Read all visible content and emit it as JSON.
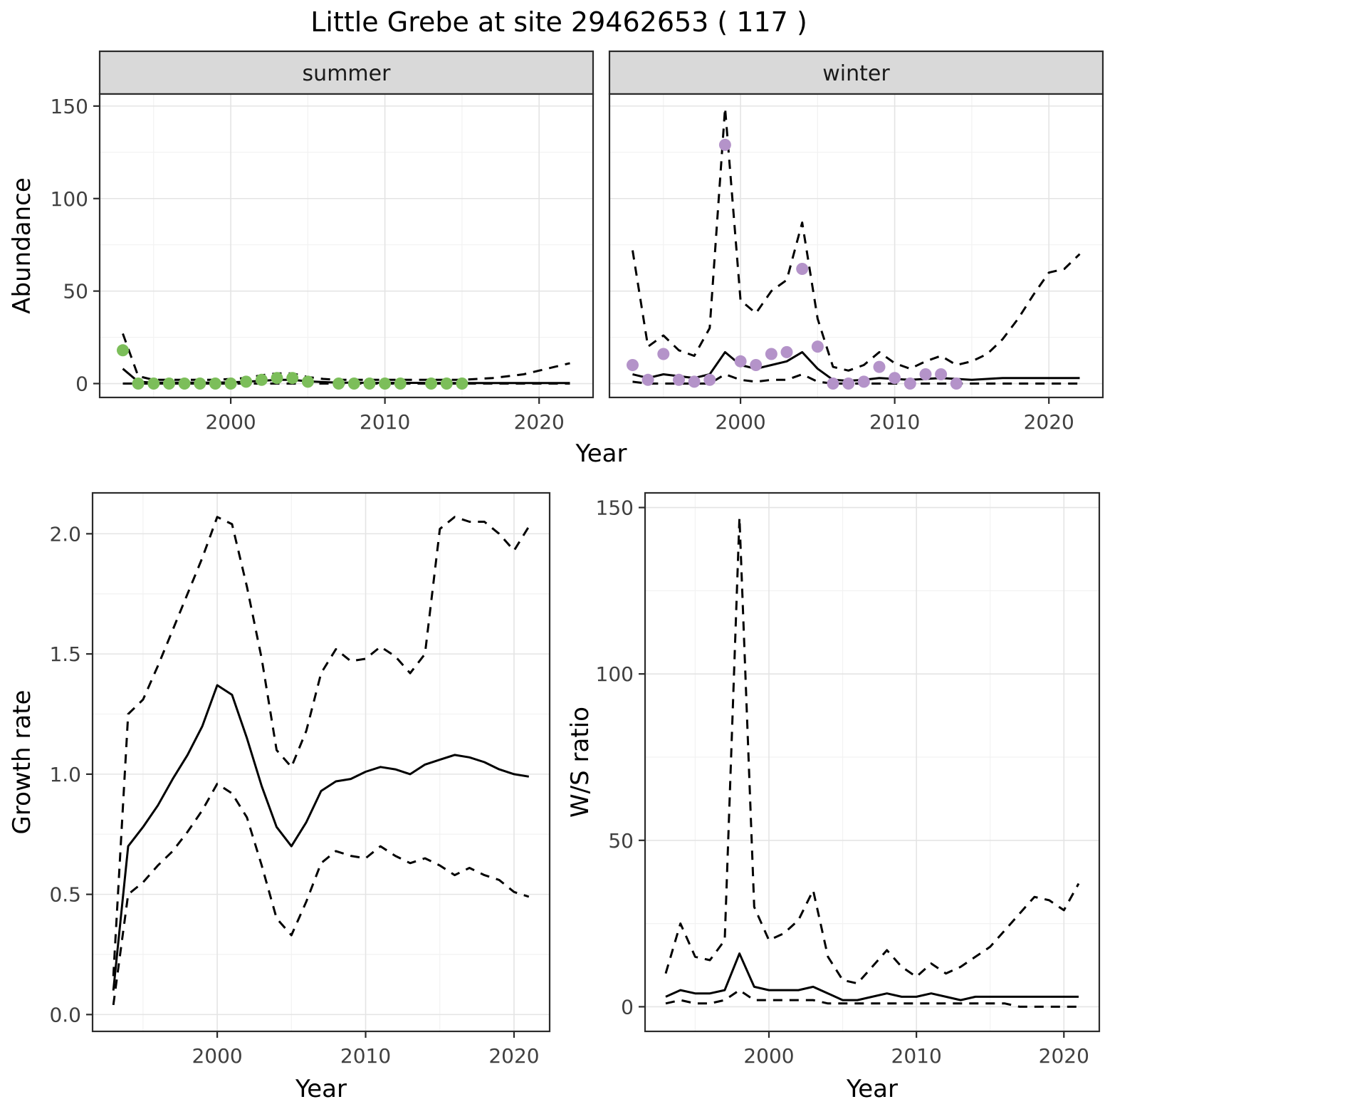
{
  "title": "Little Grebe at site 29462653 ( 117 )",
  "colors": {
    "line": "#000000",
    "strip_bg": "#d9d9d9",
    "panel_border": "#2b2b2b",
    "grid_major": "#e4e4e4",
    "grid_minor": "#f2f2f2",
    "tick_text": "#404040"
  },
  "chart_data": [
    {
      "id": "abundance-by-season",
      "type": "line",
      "title": "",
      "xlabel": "Year",
      "ylabel": "Abundance",
      "facets": [
        "summer",
        "winter"
      ],
      "legend": "none",
      "grid": true,
      "xlim": [
        1991.5,
        2023.5
      ],
      "ylim": [
        -7.5,
        156.5
      ],
      "x_ticks": [
        2000,
        2010,
        2020
      ],
      "x_tick_labels": [
        "2000",
        "2010",
        "2020"
      ],
      "x_minor": [
        1995,
        2005,
        2015
      ],
      "y_ticks": [
        0,
        50,
        100,
        150
      ],
      "y_tick_labels": [
        "0",
        "50",
        "100",
        "150"
      ],
      "y_minor": [
        25,
        75,
        125
      ],
      "line_years": [
        1993,
        1994,
        1995,
        1996,
        1997,
        1998,
        1999,
        2000,
        2001,
        2002,
        2003,
        2004,
        2005,
        2006,
        2007,
        2008,
        2009,
        2010,
        2011,
        2012,
        2013,
        2014,
        2015,
        2016,
        2017,
        2018,
        2019,
        2020,
        2021,
        2022
      ],
      "panels": [
        {
          "facet": "summer",
          "point_color": "#7cbe5a",
          "points": {
            "x": [
              1993,
              1994,
              1995,
              1996,
              1997,
              1998,
              1999,
              2000,
              2001,
              2002,
              2003,
              2004,
              2005,
              2007,
              2008,
              2009,
              2010,
              2011,
              2013,
              2014,
              2015
            ],
            "y": [
              18,
              0,
              0,
              0,
              0,
              0,
              0,
              0,
              1,
              2,
              3,
              3,
              1,
              0,
              0,
              0,
              0,
              0,
              0,
              0,
              0
            ]
          },
          "fit_y": [
            8,
            1,
            0.5,
            0.5,
            0.5,
            0.5,
            0.5,
            0.7,
            1,
            1.5,
            2,
            2,
            1.2,
            0.8,
            0.5,
            0.5,
            0.4,
            0.4,
            0.4,
            0.4,
            0.3,
            0.3,
            0.3,
            0.3,
            0.3,
            0.3,
            0.3,
            0.3,
            0.3,
            0.3
          ],
          "upper_y": [
            27,
            4,
            2,
            2,
            2,
            2,
            2,
            2.5,
            3,
            4.5,
            5.5,
            5.5,
            3.5,
            2.5,
            2,
            2,
            2,
            2,
            2,
            2,
            2,
            2,
            2,
            2.5,
            3,
            4,
            5,
            7,
            9,
            11
          ],
          "lower_y": [
            0,
            0,
            0,
            0,
            0,
            0,
            0,
            0,
            0,
            0,
            0,
            0,
            0,
            0,
            0,
            0,
            0,
            0,
            0,
            0,
            0,
            0,
            0,
            0,
            0,
            0,
            0,
            0,
            0,
            0
          ]
        },
        {
          "facet": "winter",
          "point_color": "#b493c9",
          "points": {
            "x": [
              1993,
              1994,
              1995,
              1996,
              1997,
              1998,
              1999,
              2000,
              2001,
              2002,
              2003,
              2004,
              2005,
              2006,
              2007,
              2008,
              2009,
              2010,
              2011,
              2012,
              2013,
              2014
            ],
            "y": [
              10,
              2,
              16,
              2,
              1,
              2,
              129,
              12,
              10,
              16,
              17,
              62,
              20,
              0,
              0,
              1,
              9,
              3,
              0,
              5,
              5,
              0
            ]
          },
          "fit_y": [
            5,
            3,
            5,
            4,
            3,
            5,
            17,
            10,
            8,
            10,
            12,
            17,
            8,
            2,
            1.5,
            2,
            3,
            2.5,
            2,
            2.5,
            3,
            2.5,
            2,
            2.5,
            3,
            3,
            3,
            3,
            3,
            3
          ],
          "upper_y": [
            72,
            20,
            26,
            18,
            15,
            30,
            149,
            45,
            38,
            50,
            56,
            87,
            35,
            9,
            7,
            10,
            17,
            11,
            8,
            12,
            15,
            10,
            12,
            16,
            24,
            35,
            48,
            60,
            62,
            70
          ],
          "lower_y": [
            1,
            0,
            0,
            0,
            0,
            0,
            5,
            2,
            1,
            2,
            2,
            5,
            1,
            0,
            0,
            0,
            0,
            0,
            0,
            0,
            0,
            0,
            0,
            0,
            0,
            0,
            0,
            0,
            0,
            0
          ]
        }
      ]
    },
    {
      "id": "growth-rate",
      "type": "line",
      "title": "",
      "xlabel": "Year",
      "ylabel": "Growth rate",
      "legend": "none",
      "grid": true,
      "xlim": [
        1991.6,
        2022.4
      ],
      "ylim": [
        -0.07,
        2.17
      ],
      "x_ticks": [
        2000,
        2010,
        2020
      ],
      "x_tick_labels": [
        "2000",
        "2010",
        "2020"
      ],
      "x_minor": [
        1995,
        2005,
        2015
      ],
      "y_ticks": [
        0,
        0.5,
        1.0,
        1.5,
        2.0
      ],
      "y_tick_labels": [
        "0.0",
        "0.5",
        "1.0",
        "1.5",
        "2.0"
      ],
      "y_minor": [
        0.25,
        0.75,
        1.25,
        1.75
      ],
      "line_years": [
        1993,
        1994,
        1995,
        1996,
        1997,
        1998,
        1999,
        2000,
        2001,
        2002,
        2003,
        2004,
        2005,
        2006,
        2007,
        2008,
        2009,
        2010,
        2011,
        2012,
        2013,
        2014,
        2015,
        2016,
        2017,
        2018,
        2019,
        2020,
        2021
      ],
      "panels": [
        {
          "facet": "",
          "fit_y": [
            0.1,
            0.7,
            0.78,
            0.87,
            0.98,
            1.08,
            1.2,
            1.37,
            1.33,
            1.15,
            0.95,
            0.78,
            0.7,
            0.8,
            0.93,
            0.97,
            0.98,
            1.01,
            1.03,
            1.02,
            1.0,
            1.04,
            1.06,
            1.08,
            1.07,
            1.05,
            1.02,
            1.0,
            0.99
          ],
          "upper_y": [
            0.16,
            1.25,
            1.31,
            1.45,
            1.6,
            1.75,
            1.9,
            2.07,
            2.04,
            1.78,
            1.48,
            1.1,
            1.03,
            1.18,
            1.42,
            1.52,
            1.47,
            1.48,
            1.53,
            1.49,
            1.42,
            1.5,
            2.02,
            2.07,
            2.05,
            2.05,
            2.0,
            1.93,
            2.03
          ],
          "lower_y": [
            0.04,
            0.5,
            0.55,
            0.62,
            0.68,
            0.76,
            0.85,
            0.96,
            0.92,
            0.82,
            0.62,
            0.4,
            0.33,
            0.47,
            0.63,
            0.68,
            0.66,
            0.65,
            0.7,
            0.66,
            0.63,
            0.65,
            0.62,
            0.58,
            0.61,
            0.58,
            0.56,
            0.51,
            0.49
          ]
        }
      ]
    },
    {
      "id": "ws-ratio",
      "type": "line",
      "title": "",
      "xlabel": "Year",
      "ylabel": "W/S ratio",
      "legend": "none",
      "grid": true,
      "xlim": [
        1991.6,
        2022.4
      ],
      "ylim": [
        -7.4,
        154.4
      ],
      "x_ticks": [
        2000,
        2010,
        2020
      ],
      "x_tick_labels": [
        "2000",
        "2010",
        "2020"
      ],
      "x_minor": [
        1995,
        2005,
        2015
      ],
      "y_ticks": [
        0,
        50,
        100,
        150
      ],
      "y_tick_labels": [
        "0",
        "50",
        "100",
        "150"
      ],
      "y_minor": [
        25,
        75,
        125
      ],
      "line_years": [
        1993,
        1994,
        1995,
        1996,
        1997,
        1998,
        1999,
        2000,
        2001,
        2002,
        2003,
        2004,
        2005,
        2006,
        2007,
        2008,
        2009,
        2010,
        2011,
        2012,
        2013,
        2014,
        2015,
        2016,
        2017,
        2018,
        2019,
        2020,
        2021
      ],
      "panels": [
        {
          "facet": "",
          "fit_y": [
            3,
            5,
            4,
            4,
            5,
            16,
            6,
            5,
            5,
            5,
            6,
            4,
            2,
            2,
            3,
            4,
            3,
            3,
            4,
            3,
            2,
            3,
            3,
            3,
            3,
            3,
            3,
            3,
            3
          ],
          "upper_y": [
            10,
            25,
            15,
            14,
            20,
            147,
            30,
            20,
            22,
            26,
            35,
            15,
            8,
            7,
            12,
            17,
            12,
            9,
            13,
            10,
            12,
            15,
            18,
            23,
            28,
            33,
            32,
            29,
            37
          ],
          "lower_y": [
            1,
            2,
            1,
            1,
            2,
            5,
            2,
            2,
            2,
            2,
            2,
            1,
            1,
            1,
            1,
            1,
            1,
            1,
            1,
            1,
            1,
            1,
            1,
            1,
            0,
            0,
            0,
            0,
            0
          ]
        }
      ]
    }
  ]
}
